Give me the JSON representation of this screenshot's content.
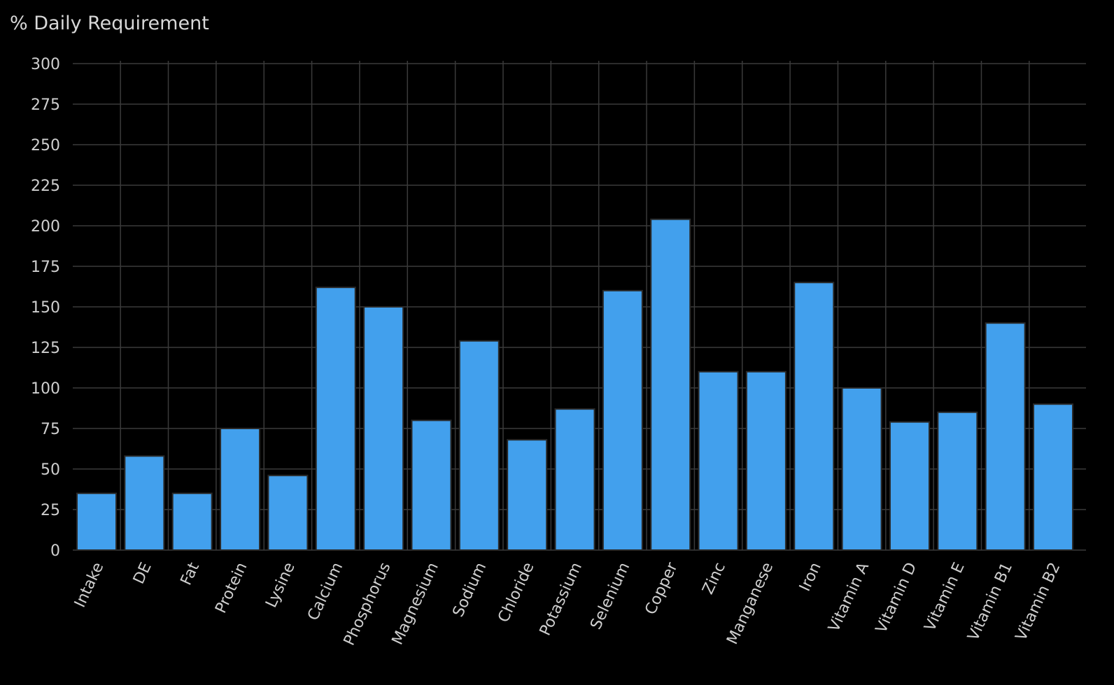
{
  "chart_data": {
    "type": "bar",
    "title": "% Daily Requirement",
    "xlabel": "",
    "ylabel": "",
    "categories": [
      "Intake",
      "DE",
      "Fat",
      "Protein",
      "Lysine",
      "Calcium",
      "Phosphorus",
      "Magnesium",
      "Sodium",
      "Chloride",
      "Potassium",
      "Selenium",
      "Copper",
      "Zinc",
      "Manganese",
      "Iron",
      "Vitamin A",
      "Vitamin D",
      "Vitamin E",
      "Vitamin B1",
      "Vitamin B2"
    ],
    "values": [
      35,
      58,
      35,
      75,
      46,
      162,
      150,
      80,
      129,
      68,
      87,
      160,
      204,
      110,
      110,
      165,
      100,
      79,
      85,
      140,
      90
    ],
    "ylim": [
      0,
      300
    ],
    "yticks": [
      0,
      25,
      50,
      75,
      100,
      125,
      150,
      175,
      200,
      225,
      250,
      275,
      300
    ],
    "grid": true,
    "legend": "none",
    "bar_color": "#42a0ed",
    "background": "#000000"
  }
}
